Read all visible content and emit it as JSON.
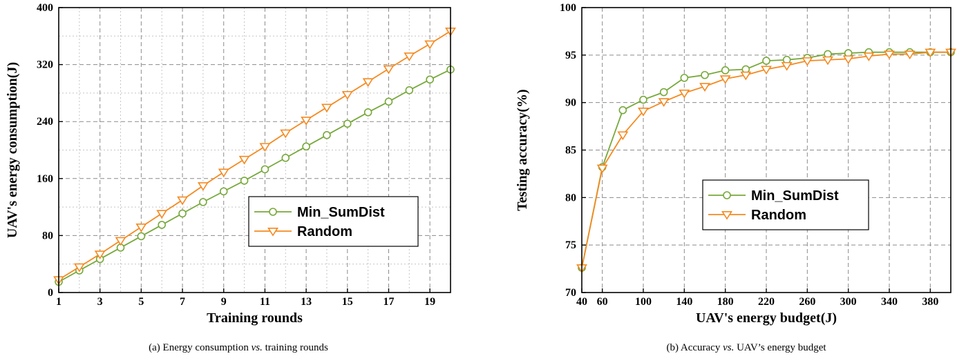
{
  "chart_data": [
    {
      "type": "line",
      "xlabel": "Training rounds",
      "ylabel": "UAV's energy consumption(J)",
      "xlim": [
        1,
        20
      ],
      "ylim": [
        0,
        400
      ],
      "xticks": [
        1,
        3,
        5,
        7,
        9,
        11,
        13,
        15,
        17,
        19
      ],
      "yticks": [
        0,
        80,
        160,
        240,
        320,
        400
      ],
      "grid": true,
      "legend_position": "center-right",
      "x": [
        1,
        2,
        3,
        4,
        5,
        6,
        7,
        8,
        9,
        10,
        11,
        12,
        13,
        14,
        15,
        16,
        17,
        18,
        19,
        20
      ],
      "series": [
        {
          "name": "Min_SumDist",
          "color": "#76a83a",
          "marker": "circle",
          "values": [
            15,
            31,
            47,
            63,
            79,
            95,
            111,
            127,
            142,
            157,
            173,
            189,
            205,
            221,
            237,
            253,
            268,
            284,
            299,
            313
          ]
        },
        {
          "name": "Random",
          "color": "#f5891f",
          "marker": "triangle-down",
          "values": [
            18,
            36,
            54,
            73,
            92,
            111,
            130,
            150,
            169,
            187,
            205,
            224,
            242,
            260,
            278,
            296,
            314,
            332,
            349,
            367
          ]
        }
      ],
      "caption_parts": [
        "(a) Energy consumption ",
        "vs.",
        " training rounds"
      ]
    },
    {
      "type": "line",
      "xlabel": "UAV's energy budget(J)",
      "ylabel": "Testing accuracy(%)",
      "xlim": [
        40,
        400
      ],
      "ylim": [
        70,
        100
      ],
      "xticks": [
        40,
        60,
        100,
        140,
        180,
        220,
        260,
        300,
        340,
        380
      ],
      "yticks": [
        70,
        75,
        80,
        85,
        90,
        95,
        100
      ],
      "grid": true,
      "legend_position": "center",
      "x": [
        40,
        60,
        80,
        100,
        120,
        140,
        160,
        180,
        200,
        220,
        240,
        260,
        280,
        300,
        320,
        340,
        360,
        380,
        400
      ],
      "series": [
        {
          "name": "Min_SumDist",
          "color": "#76a83a",
          "marker": "circle",
          "values": [
            72.6,
            83.2,
            89.2,
            90.3,
            91.1,
            92.6,
            92.9,
            93.4,
            93.5,
            94.4,
            94.5,
            94.7,
            95.1,
            95.2,
            95.3,
            95.3,
            95.3,
            95.3,
            95.3
          ]
        },
        {
          "name": "Random",
          "color": "#f5891f",
          "marker": "triangle-down",
          "values": [
            72.6,
            83.1,
            86.6,
            89.1,
            90.1,
            91.0,
            91.7,
            92.5,
            92.9,
            93.5,
            93.9,
            94.4,
            94.5,
            94.6,
            94.9,
            95.1,
            95.1,
            95.3,
            95.3
          ]
        }
      ],
      "caption_parts": [
        "(b) Accuracy ",
        "vs.",
        " UAV’s energy budget"
      ]
    }
  ]
}
